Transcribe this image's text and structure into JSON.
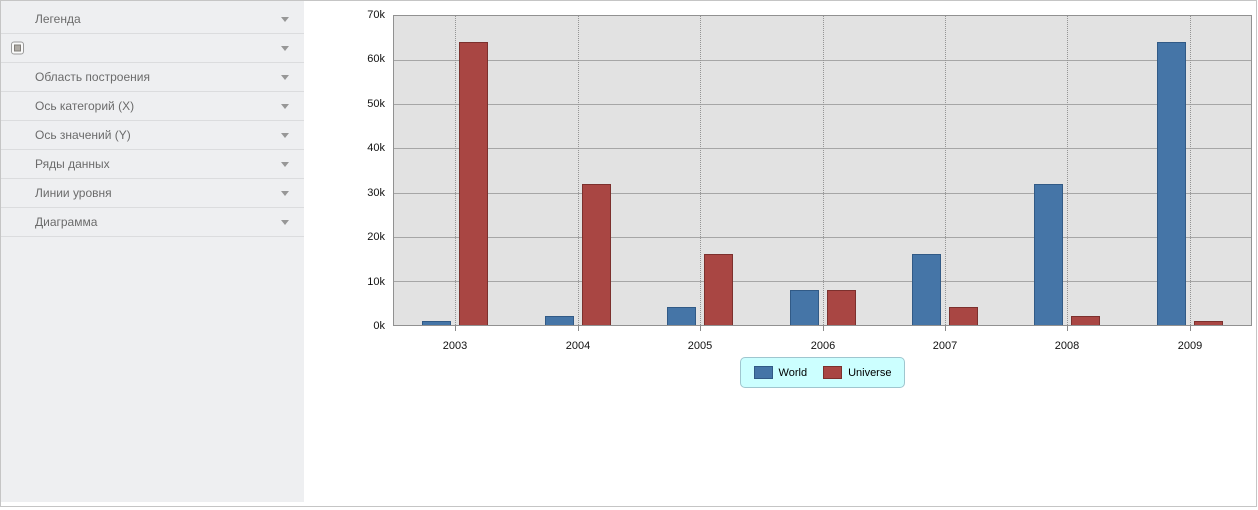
{
  "sidebar": {
    "items": [
      {
        "label": "Легенда",
        "has_checkbox": false
      },
      {
        "label": "",
        "has_checkbox": true
      },
      {
        "label": "Область построения",
        "has_checkbox": false
      },
      {
        "label": "Ось категорий (X)",
        "has_checkbox": false
      },
      {
        "label": "Ось значений (Y)",
        "has_checkbox": false
      },
      {
        "label": "Ряды данных",
        "has_checkbox": false
      },
      {
        "label": "Линии уровня",
        "has_checkbox": false
      },
      {
        "label": "Диаграмма",
        "has_checkbox": false
      }
    ]
  },
  "chart_data": {
    "type": "bar",
    "title": "",
    "xlabel": "",
    "ylabel": "",
    "categories": [
      "2003",
      "2004",
      "2005",
      "2006",
      "2007",
      "2008",
      "2009"
    ],
    "series": [
      {
        "name": "World",
        "color": "#4575a7",
        "border_color": "#315a86",
        "values": [
          1000,
          2000,
          4000,
          8000,
          16000,
          32000,
          64000
        ]
      },
      {
        "name": "Universe",
        "color": "#a94643",
        "border_color": "#7c302d",
        "values": [
          64000,
          32000,
          16000,
          8000,
          4000,
          2000,
          1000
        ]
      }
    ],
    "ylim": [
      0,
      70000
    ],
    "ytick_step": 10000,
    "ytick_labels": [
      "0k",
      "10k",
      "20k",
      "30k",
      "40k",
      "50k",
      "60k",
      "70k"
    ],
    "grid": {
      "horizontal": "solid",
      "vertical": "dotted"
    },
    "plot_background": "#e2e2e2",
    "legend": {
      "position": "bottom",
      "background": "#ccffff",
      "border_color": "#9fc6cf"
    }
  }
}
